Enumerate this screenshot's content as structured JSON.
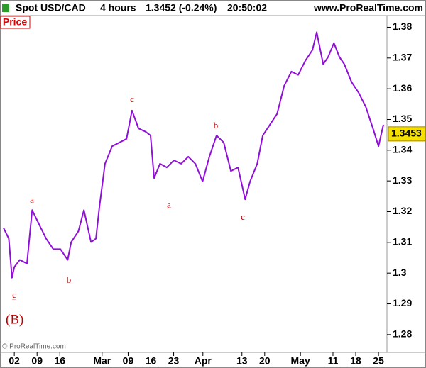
{
  "chart_data": {
    "type": "line",
    "title_parts": [
      "Spot USD/CAD",
      "4 hours",
      "1.3452 (-0.24%)",
      "20:50:02"
    ],
    "source": "www.ProRealTime.com",
    "panel_label": "Price",
    "copyright": "© ProRealTime.com",
    "wave_label": "(B)",
    "annotations": [
      "c",
      "a",
      "b",
      "c",
      "a",
      "b",
      "c"
    ],
    "series": [
      {
        "name": "Price",
        "color": "#9010d8",
        "x": [
          -3.3,
          -1.7,
          -0.7,
          0,
          1.7,
          3.9,
          5.5,
          7.6,
          9.8,
          12,
          14.2,
          16.4,
          17.5,
          19.7,
          21.4,
          23.6,
          25.1,
          26.2,
          27.9,
          30.1,
          32.3,
          34.5,
          36.2,
          38.2,
          40.4,
          41.9,
          43,
          44.8,
          46.9,
          49.1,
          51.3,
          53.5,
          55.7,
          57.9,
          60,
          62.2,
          64.4,
          66.6,
          68.8,
          71,
          72.5,
          74.7,
          76.4,
          78.6,
          80.8,
          83,
          85.2,
          87.3,
          89.5,
          91.7,
          93,
          95,
          96.5,
          98.3,
          100,
          101.5,
          103.7,
          105.9,
          108.1,
          110.3,
          112,
          113.5
        ],
        "values": [
          1.3147,
          1.3112,
          1.2985,
          1.302,
          1.3043,
          1.3031,
          1.3205,
          1.3159,
          1.3112,
          1.3078,
          1.3078,
          1.3043,
          1.3101,
          1.3136,
          1.3205,
          1.3101,
          1.3112,
          1.3217,
          1.3356,
          1.3413,
          1.3425,
          1.3437,
          1.3529,
          1.3471,
          1.346,
          1.3448,
          1.3309,
          1.3356,
          1.3344,
          1.3367,
          1.3356,
          1.3379,
          1.3356,
          1.3298,
          1.3379,
          1.3448,
          1.3425,
          1.3332,
          1.3344,
          1.324,
          1.3298,
          1.3356,
          1.3448,
          1.3483,
          1.3518,
          1.361,
          1.3656,
          1.3645,
          1.3691,
          1.3726,
          1.3784,
          1.368,
          1.3703,
          1.3749,
          1.3703,
          1.368,
          1.3622,
          1.3587,
          1.3541,
          1.3471,
          1.3413,
          1.3483
        ]
      }
    ],
    "last_price": 1.3453,
    "xlim": [
      -4.4,
      114.6
    ],
    "ylim": [
      1.2742,
      1.3838
    ],
    "yticks": [
      1.28,
      1.29,
      1.3,
      1.31,
      1.32,
      1.33,
      1.34,
      1.35,
      1.36,
      1.37,
      1.38
    ],
    "xticks": [
      {
        "value": 0,
        "label": "02"
      },
      {
        "value": 7,
        "label": "09"
      },
      {
        "value": 14,
        "label": "16"
      },
      {
        "value": 27,
        "label": "Mar"
      },
      {
        "value": 35,
        "label": "09"
      },
      {
        "value": 42,
        "label": "16"
      },
      {
        "value": 49,
        "label": "23"
      },
      {
        "value": 58,
        "label": "Apr"
      },
      {
        "value": 70,
        "label": "13"
      },
      {
        "value": 77,
        "label": "20"
      },
      {
        "value": 88,
        "label": "May"
      },
      {
        "value": 98,
        "label": "11"
      },
      {
        "value": 105,
        "label": "18"
      },
      {
        "value": 112,
        "label": "25"
      }
    ]
  }
}
